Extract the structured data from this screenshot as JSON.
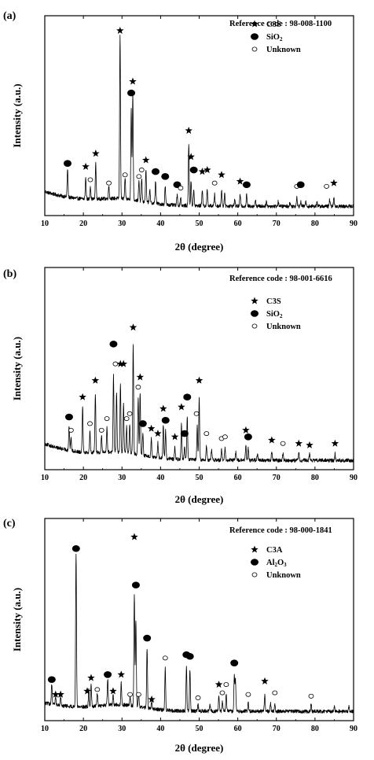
{
  "chart_data": [
    {
      "type": "line",
      "panel_label": "(a)",
      "reference_code": "Reference code : 98-008-1100",
      "xlabel": "2θ (degree)",
      "ylabel": "Intensity (a.u.)",
      "xlim": [
        10,
        90
      ],
      "xticks": [
        "10",
        "20",
        "30",
        "40",
        "50",
        "60",
        "70",
        "80",
        "90"
      ],
      "grid": false,
      "legend_placement": "top-right",
      "legend": [
        {
          "marker": "star",
          "label": "C3S",
          "formula": [
            "C3S"
          ]
        },
        {
          "marker": "filled-circle",
          "label": "SiO2",
          "formula": [
            "SiO",
            "2"
          ]
        },
        {
          "marker": "open-circle",
          "label": "Unknown",
          "formula": [
            "Unknown"
          ]
        }
      ],
      "peaks": [
        [
          15.9,
          0.17
        ],
        [
          20.6,
          0.13
        ],
        [
          21.8,
          0.08
        ],
        [
          23.2,
          0.22
        ],
        [
          26.6,
          0.08
        ],
        [
          29.5,
          1.0
        ],
        [
          30.8,
          0.12
        ],
        [
          32.4,
          0.55
        ],
        [
          32.8,
          0.65
        ],
        [
          34.4,
          0.12
        ],
        [
          35.1,
          0.14
        ],
        [
          36.2,
          0.2
        ],
        [
          37.2,
          0.08
        ],
        [
          38.7,
          0.14
        ],
        [
          41.2,
          0.11
        ],
        [
          44.3,
          0.06
        ],
        [
          45.2,
          0.05
        ],
        [
          47.3,
          0.38
        ],
        [
          47.9,
          0.15
        ],
        [
          48.6,
          0.09
        ],
        [
          50.8,
          0.1
        ],
        [
          52.1,
          0.1
        ],
        [
          54.0,
          0.07
        ],
        [
          55.8,
          0.1
        ],
        [
          56.6,
          0.07
        ],
        [
          59.2,
          0.04
        ],
        [
          60.6,
          0.07
        ],
        [
          62.3,
          0.07
        ],
        [
          64.6,
          0.04
        ],
        [
          67.4,
          0.03
        ],
        [
          70.5,
          0.03
        ],
        [
          73.5,
          0.02
        ],
        [
          75.3,
          0.06
        ],
        [
          76.3,
          0.03
        ],
        [
          77.6,
          0.03
        ],
        [
          80.5,
          0.03
        ],
        [
          83.8,
          0.04
        ],
        [
          84.9,
          0.05
        ]
      ],
      "background": 0.09,
      "markers": [
        {
          "x": 15.9,
          "y": 0.28,
          "type": "filled-circle"
        },
        {
          "x": 20.6,
          "y": 0.26,
          "type": "star"
        },
        {
          "x": 21.8,
          "y": 0.18,
          "type": "open-circle"
        },
        {
          "x": 23.2,
          "y": 0.34,
          "type": "star"
        },
        {
          "x": 26.6,
          "y": 0.16,
          "type": "open-circle"
        },
        {
          "x": 29.5,
          "y": 1.09,
          "type": "star"
        },
        {
          "x": 30.8,
          "y": 0.21,
          "type": "open-circle"
        },
        {
          "x": 32.8,
          "y": 0.78,
          "type": "star"
        },
        {
          "x": 32.4,
          "y": 0.71,
          "type": "filled-circle"
        },
        {
          "x": 34.4,
          "y": 0.2,
          "type": "open-circle"
        },
        {
          "x": 35.1,
          "y": 0.24,
          "type": "open-circle"
        },
        {
          "x": 36.2,
          "y": 0.3,
          "type": "star"
        },
        {
          "x": 38.7,
          "y": 0.23,
          "type": "filled-circle"
        },
        {
          "x": 41.2,
          "y": 0.2,
          "type": "filled-circle"
        },
        {
          "x": 44.3,
          "y": 0.15,
          "type": "filled-circle"
        },
        {
          "x": 45.2,
          "y": 0.13,
          "type": "open-circle"
        },
        {
          "x": 47.3,
          "y": 0.48,
          "type": "star"
        },
        {
          "x": 48.6,
          "y": 0.24,
          "type": "filled-circle"
        },
        {
          "x": 47.9,
          "y": 0.32,
          "type": "star"
        },
        {
          "x": 50.8,
          "y": 0.23,
          "type": "star"
        },
        {
          "x": 52.1,
          "y": 0.24,
          "type": "star"
        },
        {
          "x": 54.0,
          "y": 0.16,
          "type": "open-circle"
        },
        {
          "x": 55.8,
          "y": 0.21,
          "type": "star"
        },
        {
          "x": 60.6,
          "y": 0.17,
          "type": "star"
        },
        {
          "x": 62.3,
          "y": 0.15,
          "type": "filled-circle"
        },
        {
          "x": 75.3,
          "y": 0.14,
          "type": "open-circle"
        },
        {
          "x": 76.3,
          "y": 0.15,
          "type": "filled-circle"
        },
        {
          "x": 83.0,
          "y": 0.14,
          "type": "open-circle"
        },
        {
          "x": 84.9,
          "y": 0.16,
          "type": "star"
        }
      ]
    },
    {
      "type": "line",
      "panel_label": "(b)",
      "reference_code": "Reference code : 98-001-6616",
      "xlabel": "2θ (degree)",
      "ylabel": "Intensity (a.u.)",
      "xlim": [
        10,
        90
      ],
      "xticks": [
        "10",
        "20",
        "30",
        "40",
        "50",
        "60",
        "70",
        "80",
        "90"
      ],
      "grid": false,
      "legend_placement": "top-right",
      "legend": [
        {
          "marker": "star",
          "label": "C3S",
          "formula": [
            "C3S"
          ]
        },
        {
          "marker": "filled-circle",
          "label": "SiO2",
          "formula": [
            "SiO",
            "2"
          ]
        },
        {
          "marker": "open-circle",
          "label": "Unknown",
          "formula": [
            "Unknown"
          ]
        }
      ],
      "peaks": [
        [
          16.3,
          0.15
        ],
        [
          16.8,
          0.08
        ],
        [
          19.8,
          0.28
        ],
        [
          21.7,
          0.13
        ],
        [
          23.1,
          0.36
        ],
        [
          24.7,
          0.1
        ],
        [
          26.1,
          0.15
        ],
        [
          27.8,
          0.46
        ],
        [
          28.6,
          0.36
        ],
        [
          29.6,
          0.42
        ],
        [
          30.4,
          0.3
        ],
        [
          31.2,
          0.16
        ],
        [
          32.0,
          0.18
        ],
        [
          32.9,
          0.66
        ],
        [
          34.2,
          0.34
        ],
        [
          34.7,
          0.38
        ],
        [
          35.4,
          0.14
        ],
        [
          37.6,
          0.11
        ],
        [
          39.3,
          0.09
        ],
        [
          40.7,
          0.2
        ],
        [
          41.3,
          0.17
        ],
        [
          43.7,
          0.07
        ],
        [
          45.4,
          0.21
        ],
        [
          46.2,
          0.08
        ],
        [
          46.9,
          0.26
        ],
        [
          49.5,
          0.2
        ],
        [
          50.0,
          0.37
        ],
        [
          51.9,
          0.09
        ],
        [
          53.2,
          0.06
        ],
        [
          55.8,
          0.06
        ],
        [
          56.7,
          0.07
        ],
        [
          59.5,
          0.05
        ],
        [
          62.1,
          0.09
        ],
        [
          62.7,
          0.08
        ],
        [
          65.1,
          0.04
        ],
        [
          68.8,
          0.05
        ],
        [
          71.7,
          0.04
        ],
        [
          75.8,
          0.05
        ],
        [
          78.6,
          0.04
        ],
        [
          85.2,
          0.04
        ]
      ],
      "background": 0.1,
      "markers": [
        {
          "x": 16.3,
          "y": 0.28,
          "type": "filled-circle"
        },
        {
          "x": 16.8,
          "y": 0.2,
          "type": "open-circle"
        },
        {
          "x": 19.8,
          "y": 0.4,
          "type": "star"
        },
        {
          "x": 21.7,
          "y": 0.24,
          "type": "open-circle"
        },
        {
          "x": 23.1,
          "y": 0.5,
          "type": "star"
        },
        {
          "x": 24.7,
          "y": 0.2,
          "type": "open-circle"
        },
        {
          "x": 26.1,
          "y": 0.27,
          "type": "open-circle"
        },
        {
          "x": 27.8,
          "y": 0.72,
          "type": "filled-circle"
        },
        {
          "x": 28.3,
          "y": 0.6,
          "type": "open-circle"
        },
        {
          "x": 29.6,
          "y": 0.6,
          "type": "star"
        },
        {
          "x": 30.4,
          "y": 0.6,
          "type": "star"
        },
        {
          "x": 31.2,
          "y": 0.27,
          "type": "open-circle"
        },
        {
          "x": 32.0,
          "y": 0.3,
          "type": "open-circle"
        },
        {
          "x": 32.9,
          "y": 0.82,
          "type": "star"
        },
        {
          "x": 34.2,
          "y": 0.46,
          "type": "open-circle"
        },
        {
          "x": 34.7,
          "y": 0.52,
          "type": "star"
        },
        {
          "x": 35.4,
          "y": 0.24,
          "type": "filled-circle"
        },
        {
          "x": 37.6,
          "y": 0.21,
          "type": "star"
        },
        {
          "x": 39.3,
          "y": 0.18,
          "type": "star"
        },
        {
          "x": 40.7,
          "y": 0.33,
          "type": "star"
        },
        {
          "x": 41.3,
          "y": 0.26,
          "type": "filled-circle"
        },
        {
          "x": 43.7,
          "y": 0.16,
          "type": "star"
        },
        {
          "x": 45.4,
          "y": 0.34,
          "type": "star"
        },
        {
          "x": 46.2,
          "y": 0.18,
          "type": "filled-circle"
        },
        {
          "x": 46.9,
          "y": 0.4,
          "type": "filled-circle"
        },
        {
          "x": 49.3,
          "y": 0.3,
          "type": "open-circle"
        },
        {
          "x": 50.0,
          "y": 0.5,
          "type": "star"
        },
        {
          "x": 51.9,
          "y": 0.18,
          "type": "open-circle"
        },
        {
          "x": 55.8,
          "y": 0.15,
          "type": "open-circle"
        },
        {
          "x": 56.7,
          "y": 0.16,
          "type": "open-circle"
        },
        {
          "x": 62.1,
          "y": 0.2,
          "type": "star"
        },
        {
          "x": 62.7,
          "y": 0.16,
          "type": "filled-circle"
        },
        {
          "x": 68.8,
          "y": 0.14,
          "type": "star"
        },
        {
          "x": 71.7,
          "y": 0.12,
          "type": "open-circle"
        },
        {
          "x": 75.8,
          "y": 0.12,
          "type": "star"
        },
        {
          "x": 78.6,
          "y": 0.11,
          "type": "star"
        },
        {
          "x": 85.2,
          "y": 0.12,
          "type": "star"
        }
      ]
    },
    {
      "type": "line",
      "panel_label": "(c)",
      "reference_code": "Reference code : 98-000-1841",
      "xlabel": "2θ (degree)",
      "ylabel": "Intensity (a.u.)",
      "xlim": [
        10,
        90
      ],
      "xticks": [
        "10",
        "20",
        "30",
        "40",
        "50",
        "60",
        "70",
        "80",
        "90"
      ],
      "grid": false,
      "legend_placement": "top-right",
      "legend": [
        {
          "marker": "star",
          "label": "C3A",
          "formula": [
            "C3A"
          ]
        },
        {
          "marker": "filled-circle",
          "label": "Al2O3",
          "formula": [
            "Al",
            "2",
            "O",
            "3"
          ]
        },
        {
          "marker": "open-circle",
          "label": "Unknown",
          "formula": [
            "Unknown"
          ]
        }
      ],
      "peaks": [
        [
          11.8,
          0.12
        ],
        [
          12.8,
          0.05
        ],
        [
          14.1,
          0.05
        ],
        [
          18.1,
          0.93
        ],
        [
          21.4,
          0.1
        ],
        [
          22.0,
          0.13
        ],
        [
          23.6,
          0.08
        ],
        [
          26.3,
          0.16
        ],
        [
          27.7,
          0.06
        ],
        [
          29.8,
          0.13
        ],
        [
          32.1,
          0.05
        ],
        [
          33.2,
          0.68
        ],
        [
          33.6,
          0.52
        ],
        [
          34.3,
          0.08
        ],
        [
          36.5,
          0.36
        ],
        [
          37.7,
          0.04
        ],
        [
          41.2,
          0.25
        ],
        [
          46.7,
          0.26
        ],
        [
          47.6,
          0.25
        ],
        [
          49.7,
          0.04
        ],
        [
          52.8,
          0.04
        ],
        [
          55.1,
          0.09
        ],
        [
          56.0,
          0.06
        ],
        [
          57.0,
          0.1
        ],
        [
          59.1,
          0.21
        ],
        [
          59.4,
          0.19
        ],
        [
          62.7,
          0.06
        ],
        [
          67.0,
          0.1
        ],
        [
          68.5,
          0.05
        ],
        [
          69.6,
          0.05
        ],
        [
          79.0,
          0.05
        ],
        [
          85.0,
          0.03
        ],
        [
          88.8,
          0.03
        ]
      ],
      "background": 0.05,
      "markers": [
        {
          "x": 11.8,
          "y": 0.21,
          "type": "filled-circle"
        },
        {
          "x": 12.8,
          "y": 0.12,
          "type": "star"
        },
        {
          "x": 14.1,
          "y": 0.12,
          "type": "star"
        },
        {
          "x": 18.1,
          "y": 1.0,
          "type": "filled-circle"
        },
        {
          "x": 21.0,
          "y": 0.14,
          "type": "star"
        },
        {
          "x": 22.0,
          "y": 0.22,
          "type": "star"
        },
        {
          "x": 23.6,
          "y": 0.15,
          "type": "open-circle"
        },
        {
          "x": 26.3,
          "y": 0.24,
          "type": "filled-circle"
        },
        {
          "x": 27.7,
          "y": 0.14,
          "type": "star"
        },
        {
          "x": 29.8,
          "y": 0.24,
          "type": "star"
        },
        {
          "x": 32.1,
          "y": 0.12,
          "type": "open-circle"
        },
        {
          "x": 33.2,
          "y": 1.07,
          "type": "star"
        },
        {
          "x": 33.6,
          "y": 0.78,
          "type": "filled-circle"
        },
        {
          "x": 34.3,
          "y": 0.12,
          "type": "open-circle"
        },
        {
          "x": 36.5,
          "y": 0.46,
          "type": "filled-circle"
        },
        {
          "x": 37.7,
          "y": 0.09,
          "type": "star"
        },
        {
          "x": 41.2,
          "y": 0.34,
          "type": "open-circle"
        },
        {
          "x": 46.7,
          "y": 0.36,
          "type": "filled-circle"
        },
        {
          "x": 47.6,
          "y": 0.35,
          "type": "filled-circle"
        },
        {
          "x": 49.7,
          "y": 0.1,
          "type": "open-circle"
        },
        {
          "x": 55.1,
          "y": 0.18,
          "type": "star"
        },
        {
          "x": 56.0,
          "y": 0.13,
          "type": "open-circle"
        },
        {
          "x": 57.0,
          "y": 0.18,
          "type": "open-circle"
        },
        {
          "x": 59.1,
          "y": 0.31,
          "type": "filled-circle"
        },
        {
          "x": 62.7,
          "y": 0.12,
          "type": "open-circle"
        },
        {
          "x": 67.0,
          "y": 0.2,
          "type": "star"
        },
        {
          "x": 69.6,
          "y": 0.13,
          "type": "open-circle"
        },
        {
          "x": 79.0,
          "y": 0.11,
          "type": "open-circle"
        }
      ]
    }
  ]
}
